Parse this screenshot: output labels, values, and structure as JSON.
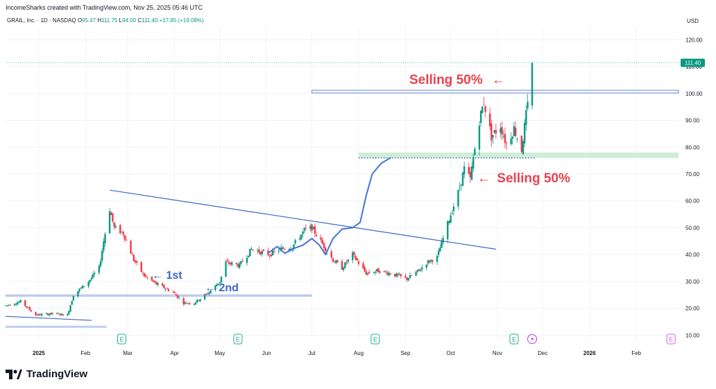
{
  "header": {
    "credit": "IncomeSharks created with TradingView.com, Nov 25, 2025 05:46 UTC"
  },
  "symbol": {
    "name": "GRAIL, Inc. · 1D · NASDAQ",
    "open_label": "O",
    "open": "95.47",
    "high_label": "H",
    "high": "111.75",
    "low_label": "L",
    "low": "94.00",
    "close_label": "C",
    "close": "111.40",
    "change": "+17.85 (+19.08%)"
  },
  "currency": "USD",
  "price_tag": "111.40",
  "annotations": {
    "sell_top": "Selling 50%",
    "sell_bottom": "Selling 50%",
    "first": "1st",
    "second": "2nd",
    "arrow_symbol": "←"
  },
  "footer": {
    "brand": "TradingView"
  },
  "colors": {
    "up": "#089981",
    "down": "#f23645",
    "trendline": "#3c66c6",
    "support_band": "#b7c7ee",
    "green_band": "#c9ecd2",
    "annotation_red": "#e8414f",
    "annotation_blue": "#3c66c6"
  },
  "chart_data": {
    "type": "candlestick",
    "x_tick_labels": [
      "2025",
      "Feb",
      "Mar",
      "Apr",
      "May",
      "Jun",
      "Jul",
      "Aug",
      "Sep",
      "Oct",
      "Nov",
      "Dec",
      "2026",
      "Feb"
    ],
    "y_ticks": [
      10,
      20,
      30,
      40,
      50,
      60,
      70,
      80,
      90,
      100,
      110,
      120
    ],
    "y_tick_labels": [
      "10.00",
      "20.00",
      "30.00",
      "40.00",
      "50.00",
      "60.00",
      "70.00",
      "80.00",
      "90.00",
      "100.00",
      "110.00",
      "120.00"
    ],
    "ylim": [
      7.5,
      125
    ],
    "x_domain": [
      "2024-12-10",
      "2026-03-01"
    ],
    "log_scale": false,
    "grid": true,
    "last_price": 111.4,
    "earnings_markers": [
      "2025-02-25",
      "2025-05-13",
      "2025-08-12",
      "2025-11-12"
    ],
    "other_markers": [
      {
        "date": "2025-11-24",
        "icon": "lightning-icon"
      },
      {
        "date": "2026-02-24",
        "icon": "E"
      }
    ],
    "key_closes": [
      {
        "date": "2024-12-10",
        "close": 21
      },
      {
        "date": "2024-12-20",
        "close": 22.5
      },
      {
        "date": "2024-12-30",
        "close": 17.5
      },
      {
        "date": "2025-01-10",
        "close": 18
      },
      {
        "date": "2025-01-20",
        "close": 17.5
      },
      {
        "date": "2025-01-24",
        "close": 25
      },
      {
        "date": "2025-02-03",
        "close": 30
      },
      {
        "date": "2025-02-10",
        "close": 35
      },
      {
        "date": "2025-02-13",
        "close": 45
      },
      {
        "date": "2025-02-17",
        "close": 57
      },
      {
        "date": "2025-02-20",
        "close": 50
      },
      {
        "date": "2025-02-26",
        "close": 48
      },
      {
        "date": "2025-03-05",
        "close": 38
      },
      {
        "date": "2025-03-12",
        "close": 32
      },
      {
        "date": "2025-03-20",
        "close": 29
      },
      {
        "date": "2025-03-31",
        "close": 26
      },
      {
        "date": "2025-04-07",
        "close": 22
      },
      {
        "date": "2025-04-14",
        "close": 22
      },
      {
        "date": "2025-04-24",
        "close": 26
      },
      {
        "date": "2025-05-01",
        "close": 30
      },
      {
        "date": "2025-05-05",
        "close": 37
      },
      {
        "date": "2025-05-14",
        "close": 36
      },
      {
        "date": "2025-05-22",
        "close": 42
      },
      {
        "date": "2025-06-03",
        "close": 40
      },
      {
        "date": "2025-06-10",
        "close": 42
      },
      {
        "date": "2025-06-18",
        "close": 43
      },
      {
        "date": "2025-06-26",
        "close": 49
      },
      {
        "date": "2025-07-01",
        "close": 50
      },
      {
        "date": "2025-07-08",
        "close": 44
      },
      {
        "date": "2025-07-15",
        "close": 38
      },
      {
        "date": "2025-07-21",
        "close": 35
      },
      {
        "date": "2025-07-28",
        "close": 40
      },
      {
        "date": "2025-08-06",
        "close": 33
      },
      {
        "date": "2025-08-14",
        "close": 34
      },
      {
        "date": "2025-08-22",
        "close": 33
      },
      {
        "date": "2025-09-02",
        "close": 31
      },
      {
        "date": "2025-09-10",
        "close": 34
      },
      {
        "date": "2025-09-15",
        "close": 37
      },
      {
        "date": "2025-09-22",
        "close": 39
      },
      {
        "date": "2025-09-26",
        "close": 46
      },
      {
        "date": "2025-10-01",
        "close": 55
      },
      {
        "date": "2025-10-06",
        "close": 63
      },
      {
        "date": "2025-10-10",
        "close": 72
      },
      {
        "date": "2025-10-14",
        "close": 68
      },
      {
        "date": "2025-10-16",
        "close": 76
      },
      {
        "date": "2025-10-20",
        "close": 90
      },
      {
        "date": "2025-10-23",
        "close": 97
      },
      {
        "date": "2025-10-28",
        "close": 84
      },
      {
        "date": "2025-11-03",
        "close": 88
      },
      {
        "date": "2025-11-07",
        "close": 81
      },
      {
        "date": "2025-11-12",
        "close": 87
      },
      {
        "date": "2025-11-17",
        "close": 79
      },
      {
        "date": "2025-11-20",
        "close": 92
      },
      {
        "date": "2025-11-21",
        "close": 95.5
      },
      {
        "date": "2025-11-24",
        "close": 111.4
      }
    ],
    "last_candle": {
      "date": "2025-11-24",
      "open": 95.47,
      "high": 111.75,
      "low": 94.0,
      "close": 111.4
    },
    "zones": [
      {
        "kind": "resistance",
        "y": [
          100.2,
          101.2
        ],
        "from": "2025-07-01",
        "to": "2026-03-01"
      },
      {
        "kind": "support",
        "y": [
          76,
          78
        ],
        "from": "2025-08-01",
        "to": "2026-03-01"
      },
      {
        "kind": "support",
        "y": [
          24.3,
          25.2
        ],
        "from": "2024-12-10",
        "to": "2025-07-01"
      },
      {
        "kind": "support",
        "y": [
          12.8,
          13.5
        ],
        "from": "2024-12-10",
        "to": "2025-02-15"
      }
    ],
    "trendlines": [
      {
        "from": {
          "date": "2025-02-17",
          "price": 64
        },
        "to": {
          "date": "2025-10-31",
          "price": 42
        }
      },
      {
        "from": {
          "date": "2024-12-10",
          "price": 17
        },
        "to": {
          "date": "2025-02-05",
          "price": 15.5
        }
      }
    ],
    "dotted_level": 76
  }
}
